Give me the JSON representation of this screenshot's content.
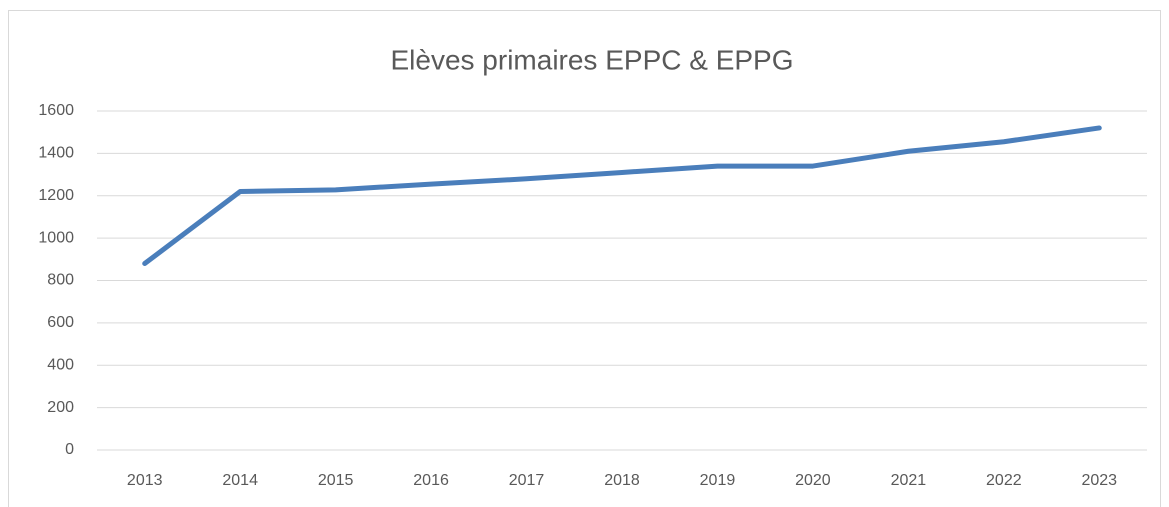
{
  "chart_data": {
    "type": "line",
    "title": "Elèves primaires EPPC & EPPG",
    "categories": [
      "2013",
      "2014",
      "2015",
      "2016",
      "2017",
      "2018",
      "2019",
      "2020",
      "2021",
      "2022",
      "2023"
    ],
    "series": [
      {
        "name": "Elèves",
        "color": "#4a7ebb",
        "values": [
          880,
          1220,
          1228,
          1255,
          1280,
          1310,
          1340,
          1340,
          1410,
          1455,
          1520
        ]
      }
    ],
    "ylim": [
      0,
      1600
    ],
    "yticks": [
      0,
      200,
      400,
      600,
      800,
      1000,
      1200,
      1400,
      1600
    ],
    "grid": true
  }
}
